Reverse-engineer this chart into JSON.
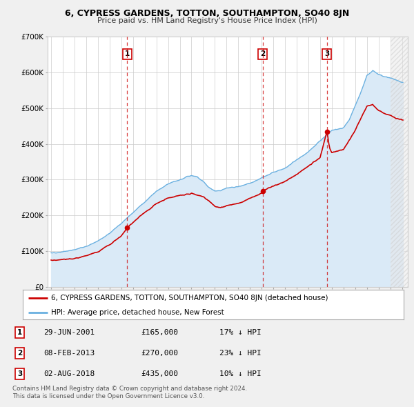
{
  "title": "6, CYPRESS GARDENS, TOTTON, SOUTHAMPTON, SO40 8JN",
  "subtitle": "Price paid vs. HM Land Registry's House Price Index (HPI)",
  "legend_line1": "6, CYPRESS GARDENS, TOTTON, SOUTHAMPTON, SO40 8JN (detached house)",
  "legend_line2": "HPI: Average price, detached house, New Forest",
  "footnote1": "Contains HM Land Registry data © Crown copyright and database right 2024.",
  "footnote2": "This data is licensed under the Open Government Licence v3.0.",
  "sales": [
    {
      "num": 1,
      "date": "29-JUN-2001",
      "price": 165000,
      "hpi_diff": "17% ↓ HPI",
      "x_year": 2001.49
    },
    {
      "num": 2,
      "date": "08-FEB-2013",
      "price": 270000,
      "hpi_diff": "23% ↓ HPI",
      "x_year": 2013.1
    },
    {
      "num": 3,
      "date": "02-AUG-2018",
      "price": 435000,
      "hpi_diff": "10% ↓ HPI",
      "x_year": 2018.59
    }
  ],
  "hpi_color": "#6ab0e0",
  "hpi_fill_color": "#daeaf7",
  "sale_color": "#cc0000",
  "vline_color": "#cc0000",
  "background_color": "#f0f0f0",
  "plot_bg_color": "#ffffff",
  "ylim": [
    0,
    700000
  ],
  "xlim_start": 1994.7,
  "xlim_end": 2025.5,
  "hatch_start": 2024.0
}
